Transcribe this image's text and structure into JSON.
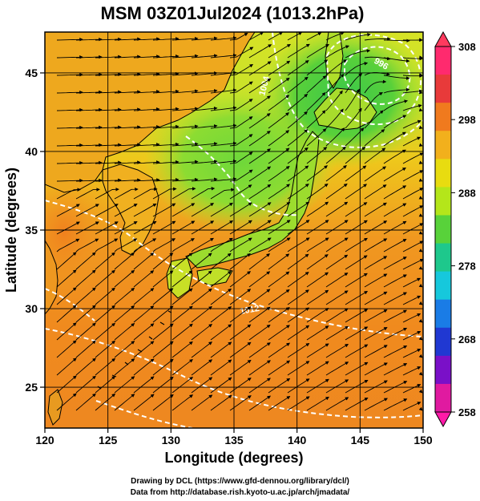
{
  "title": "MSM 03Z01Jul2024 (1013.2hPa)",
  "xlabel": "Longitude (degrees)",
  "ylabel": "Latitude  (degrees)",
  "x_ticks": [
    "120",
    "125",
    "130",
    "135",
    "140",
    "145",
    "150"
  ],
  "y_ticks": [
    "25",
    "30",
    "35",
    "40",
    "45"
  ],
  "xlim": [
    120,
    150
  ],
  "ylim": [
    22.4,
    47.6
  ],
  "colorbar": {
    "min": 258,
    "max": 308,
    "ticks": [
      "308",
      "298",
      "288",
      "278",
      "268",
      "258"
    ],
    "colors": [
      "#ff2a6e",
      "#e83a3a",
      "#f07a1e",
      "#f2b01c",
      "#e8dc10",
      "#b4e61a",
      "#58d23a",
      "#1ec88c",
      "#16c8dc",
      "#1a7ce6",
      "#2038d2",
      "#7a10c8",
      "#e01aa0"
    ]
  },
  "contour_labels": [
    "996",
    "1004",
    "1012"
  ],
  "credits": {
    "line1": "Drawing by DCL (https://www.gfd-dennou.org/library/dcl/)",
    "line2": "Data from http://database.rish.kyoto-u.ac.jp/arch/jmadata/"
  }
}
